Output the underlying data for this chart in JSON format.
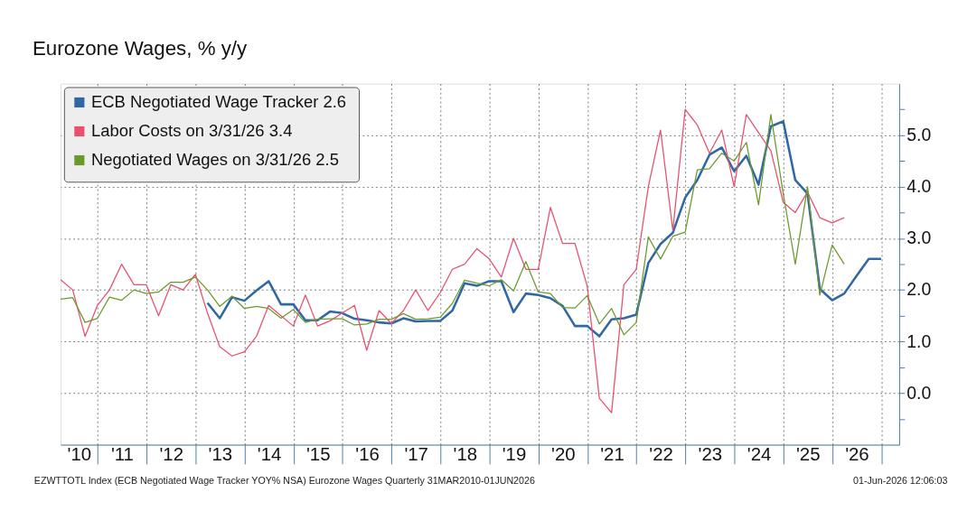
{
  "chart_data": {
    "type": "line",
    "title": "Eurozone Wages, % y/y",
    "x": [
      "2010-03-31",
      "2010-06-30",
      "2010-09-30",
      "2010-12-31",
      "2011-03-31",
      "2011-06-30",
      "2011-09-30",
      "2011-12-31",
      "2012-03-31",
      "2012-06-30",
      "2012-09-30",
      "2012-12-31",
      "2013-03-31",
      "2013-06-30",
      "2013-09-30",
      "2013-12-31",
      "2014-03-31",
      "2014-06-30",
      "2014-09-30",
      "2014-12-31",
      "2015-03-31",
      "2015-06-30",
      "2015-09-30",
      "2015-12-31",
      "2016-03-31",
      "2016-06-30",
      "2016-09-30",
      "2016-12-31",
      "2017-03-31",
      "2017-06-30",
      "2017-09-30",
      "2017-12-31",
      "2018-03-31",
      "2018-06-30",
      "2018-09-30",
      "2018-12-31",
      "2019-03-31",
      "2019-06-30",
      "2019-09-30",
      "2019-12-31",
      "2020-03-31",
      "2020-06-30",
      "2020-09-30",
      "2020-12-31",
      "2021-03-31",
      "2021-06-30",
      "2021-09-30",
      "2021-12-31",
      "2022-03-31",
      "2022-06-30",
      "2022-09-30",
      "2022-12-31",
      "2023-03-31",
      "2023-06-30",
      "2023-09-30",
      "2023-12-31",
      "2024-03-31",
      "2024-06-30",
      "2024-09-30",
      "2024-12-31",
      "2025-03-31",
      "2025-06-30",
      "2025-09-30",
      "2025-12-31",
      "2026-03-31",
      "2026-06-30",
      "2026-09-30",
      "2026-12-31"
    ],
    "series": [
      {
        "name": "ECB Negotiated Wage Tracker  2.6",
        "color": "#2f68a3",
        "values": [
          null,
          null,
          null,
          null,
          null,
          null,
          null,
          null,
          null,
          null,
          null,
          null,
          1.75,
          1.45,
          1.86,
          1.79,
          1.99,
          2.17,
          1.72,
          1.72,
          1.41,
          1.41,
          1.58,
          1.55,
          1.44,
          1.41,
          1.37,
          1.35,
          1.45,
          1.39,
          1.4,
          1.4,
          1.6,
          2.13,
          2.08,
          2.17,
          2.17,
          1.57,
          1.93,
          1.9,
          1.84,
          1.69,
          1.3,
          1.3,
          1.1,
          1.43,
          1.45,
          1.52,
          2.52,
          2.89,
          3.11,
          3.79,
          4.13,
          4.62,
          4.76,
          4.3,
          4.6,
          4.04,
          5.17,
          5.27,
          4.13,
          3.87,
          2.02,
          1.8,
          1.93,
          2.27,
          2.6,
          2.6
        ]
      },
      {
        "name": "Labor Costs on 3/31/26        3.4",
        "color": "#e8506e",
        "values": [
          2.2,
          2.0,
          1.1,
          1.7,
          2.0,
          2.5,
          2.1,
          2.1,
          1.5,
          2.1,
          2.0,
          2.3,
          1.55,
          0.9,
          0.72,
          0.8,
          1.1,
          1.7,
          1.5,
          1.3,
          1.9,
          1.3,
          1.4,
          1.55,
          1.7,
          0.83,
          1.6,
          1.35,
          1.6,
          2.0,
          1.6,
          1.95,
          2.4,
          2.5,
          2.8,
          2.6,
          2.25,
          3.0,
          2.4,
          2.4,
          3.6,
          2.9,
          2.9,
          2.07,
          -0.1,
          -0.38,
          2.1,
          2.4,
          4.0,
          5.1,
          3.15,
          5.5,
          5.2,
          4.65,
          5.1,
          4.0,
          5.4,
          5.05,
          4.7,
          3.7,
          3.5,
          3.9,
          3.4,
          3.3,
          3.4,
          null,
          null,
          null
        ]
      },
      {
        "name": "Negotiated Wages on 3/31/26 2.5",
        "color": "#6b9a2c",
        "values": [
          1.82,
          1.85,
          1.37,
          1.45,
          1.86,
          1.8,
          2.0,
          1.93,
          1.96,
          2.15,
          2.15,
          2.25,
          2.0,
          1.68,
          1.88,
          1.64,
          1.68,
          1.64,
          1.45,
          1.62,
          1.37,
          1.43,
          1.44,
          1.44,
          1.32,
          1.34,
          1.43,
          1.43,
          1.54,
          1.43,
          1.44,
          1.47,
          1.74,
          2.19,
          2.13,
          2.08,
          2.2,
          1.98,
          2.55,
          1.96,
          1.93,
          1.66,
          1.65,
          1.89,
          1.34,
          1.64,
          1.13,
          1.37,
          3.03,
          2.6,
          3.04,
          3.12,
          4.33,
          4.35,
          4.65,
          4.5,
          4.86,
          3.65,
          5.4,
          3.87,
          2.5,
          4.0,
          1.9,
          2.87,
          2.5,
          null,
          null,
          null
        ]
      }
    ],
    "xlim": [
      "2010-03-31",
      "2027-05-15"
    ],
    "xticks": [
      {
        "value": "2010-08-15",
        "label": "'10"
      },
      {
        "value": "2011-01-01",
        "label": null
      },
      {
        "value": "2011-07-02",
        "label": "'11"
      },
      {
        "value": "2012-01-01",
        "label": null
      },
      {
        "value": "2012-07-02",
        "label": "'12"
      },
      {
        "value": "2013-01-01",
        "label": null
      },
      {
        "value": "2013-07-02",
        "label": "'13"
      },
      {
        "value": "2014-01-01",
        "label": null
      },
      {
        "value": "2014-07-02",
        "label": "'14"
      },
      {
        "value": "2015-01-01",
        "label": null
      },
      {
        "value": "2015-07-02",
        "label": "'15"
      },
      {
        "value": "2016-01-01",
        "label": null
      },
      {
        "value": "2016-07-02",
        "label": "'16"
      },
      {
        "value": "2017-01-01",
        "label": null
      },
      {
        "value": "2017-07-02",
        "label": "'17"
      },
      {
        "value": "2018-01-01",
        "label": null
      },
      {
        "value": "2018-07-02",
        "label": "'18"
      },
      {
        "value": "2019-01-01",
        "label": null
      },
      {
        "value": "2019-07-02",
        "label": "'19"
      },
      {
        "value": "2020-01-01",
        "label": null
      },
      {
        "value": "2020-07-02",
        "label": "'20"
      },
      {
        "value": "2021-01-01",
        "label": null
      },
      {
        "value": "2021-07-02",
        "label": "'21"
      },
      {
        "value": "2022-01-01",
        "label": null
      },
      {
        "value": "2022-07-02",
        "label": "'22"
      },
      {
        "value": "2023-01-01",
        "label": null
      },
      {
        "value": "2023-07-02",
        "label": "'23"
      },
      {
        "value": "2024-01-01",
        "label": null
      },
      {
        "value": "2024-07-02",
        "label": "'24"
      },
      {
        "value": "2025-01-01",
        "label": null
      },
      {
        "value": "2025-07-02",
        "label": "'25"
      },
      {
        "value": "2026-01-01",
        "label": null
      },
      {
        "value": "2026-07-02",
        "label": "'26"
      },
      {
        "value": "2027-01-01",
        "label": null
      }
    ],
    "ylim": [
      -1,
      6
    ],
    "yticks": [
      {
        "value": -0.5,
        "label": null
      },
      {
        "value": 0,
        "label": "0.0"
      },
      {
        "value": 0.5,
        "label": null
      },
      {
        "value": 1,
        "label": "1.0"
      },
      {
        "value": 1.5,
        "label": null
      },
      {
        "value": 2,
        "label": "2.0"
      },
      {
        "value": 2.5,
        "label": null
      },
      {
        "value": 3,
        "label": "3.0"
      },
      {
        "value": 3.5,
        "label": null
      },
      {
        "value": 4,
        "label": "4.0"
      },
      {
        "value": 4.5,
        "label": null
      },
      {
        "value": 5,
        "label": "5.0"
      },
      {
        "value": 5.5,
        "label": null
      }
    ],
    "grid": true,
    "legend": "top left",
    "line_style": "solid",
    "annotations": [
      "EZWTTOTL Index (ECB Negotiated Wage Tracker YOY% NSA) Eurozone Wages Quarterly 31MAR2010-01JUN2026",
      "01-Jun-2026 12:06:03"
    ]
  }
}
